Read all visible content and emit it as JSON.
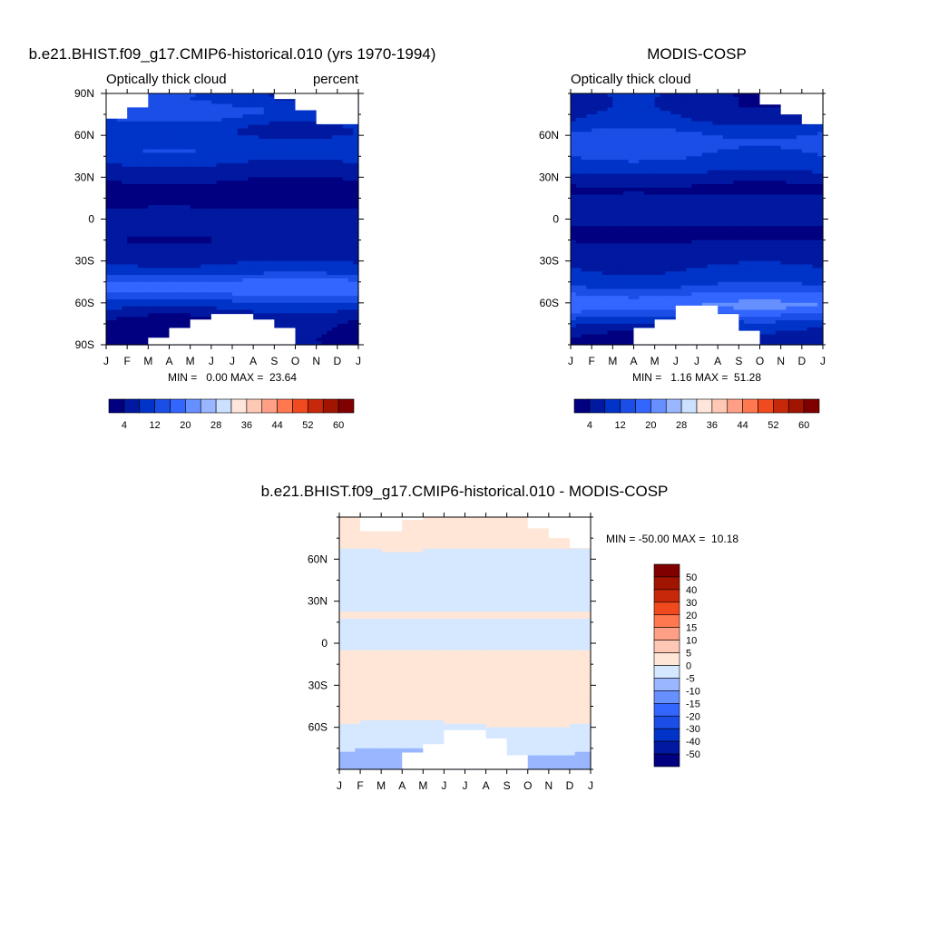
{
  "colors": {
    "abs_scale": [
      "#000080",
      "#0019a0",
      "#0033c8",
      "#1a4ee6",
      "#3366ff",
      "#6690ff",
      "#99b6ff",
      "#cce0ff",
      "#ffe6dc",
      "#ffc8b4",
      "#ffa086",
      "#ff7850",
      "#f04a1e",
      "#c8280a",
      "#a01400",
      "#800000"
    ],
    "diff_scale": [
      "#000080",
      "#0019a0",
      "#0033c8",
      "#1a4ee6",
      "#3366ff",
      "#6690ff",
      "#99b6ff",
      "#d6e8ff",
      "#ffe6d6",
      "#ffc8b4",
      "#ffa086",
      "#ff7850",
      "#f04a1e",
      "#c8280a",
      "#a01400",
      "#800000"
    ],
    "missing": "#ffffff"
  },
  "chart_data": [
    {
      "type": "heatmap",
      "title": "b.e21.BHIST.f09_g17.CMIP6-historical.010 (yrs 1970-1994)",
      "left_string": "Optically thick cloud",
      "right_string": "percent",
      "x_tick_labels": [
        "J",
        "F",
        "M",
        "A",
        "M",
        "J",
        "J",
        "A",
        "S",
        "O",
        "N",
        "D",
        "J"
      ],
      "y_tick_labels": [
        "90N",
        "60N",
        "30N",
        "0",
        "30S",
        "60S",
        "90S"
      ],
      "y_ticks_lat": [
        90,
        60,
        30,
        0,
        -30,
        -60,
        -90
      ],
      "x_range": [
        0,
        12
      ],
      "y_range": [
        -90,
        90
      ],
      "minmax_text": "MIN =   0.00 MAX =  23.64",
      "colorbar_levels": [
        4,
        8,
        12,
        16,
        20,
        24,
        28,
        32,
        36,
        40,
        44,
        48,
        52,
        56,
        60
      ],
      "colorbar_tick_labels": [
        "4",
        "12",
        "20",
        "28",
        "36",
        "44",
        "52",
        "60"
      ],
      "lat_profile": [
        [
          -85,
          2
        ],
        [
          -75,
          3
        ],
        [
          -68,
          6
        ],
        [
          -60,
          11
        ],
        [
          -55,
          15
        ],
        [
          -50,
          19
        ],
        [
          -45,
          17
        ],
        [
          -40,
          12
        ],
        [
          -35,
          9
        ],
        [
          -25,
          6
        ],
        [
          -15,
          4
        ],
        [
          -8,
          5
        ],
        [
          0,
          7
        ],
        [
          8,
          4
        ],
        [
          15,
          2
        ],
        [
          22,
          3
        ],
        [
          28,
          4
        ],
        [
          33,
          6
        ],
        [
          40,
          8
        ],
        [
          48,
          11
        ],
        [
          55,
          10
        ],
        [
          62,
          8
        ],
        [
          68,
          9
        ],
        [
          72,
          12
        ],
        [
          78,
          14
        ],
        [
          85,
          10
        ]
      ],
      "missing_north": [
        [
          0,
          72
        ],
        [
          1,
          80
        ],
        [
          2,
          90
        ],
        [
          3,
          90
        ],
        [
          4,
          90
        ],
        [
          5,
          90
        ],
        [
          6,
          90
        ],
        [
          7,
          90
        ],
        [
          8,
          86
        ],
        [
          9,
          78
        ],
        [
          10,
          68
        ],
        [
          11,
          68
        ],
        [
          12,
          68
        ]
      ],
      "missing_south": [
        [
          0,
          -90
        ],
        [
          1,
          -90
        ],
        [
          2,
          -85
        ],
        [
          3,
          -78
        ],
        [
          4,
          -72
        ],
        [
          5,
          -68
        ],
        [
          6,
          -68
        ],
        [
          7,
          -72
        ],
        [
          8,
          -78
        ],
        [
          9,
          -90
        ],
        [
          10,
          -90
        ],
        [
          11,
          -90
        ],
        [
          12,
          -90
        ]
      ]
    },
    {
      "type": "heatmap",
      "title": "MODIS-COSP",
      "left_string": "Optically thick cloud",
      "right_string": "",
      "x_tick_labels": [
        "J",
        "F",
        "M",
        "A",
        "M",
        "J",
        "J",
        "A",
        "S",
        "O",
        "N",
        "D",
        "J"
      ],
      "y_tick_labels": [
        "60N",
        "30N",
        "0",
        "30S",
        "60S"
      ],
      "y_ticks_lat": [
        60,
        30,
        0,
        -30,
        -60
      ],
      "x_range": [
        0,
        12
      ],
      "y_range": [
        -90,
        90
      ],
      "minmax_text": "MIN =   1.16 MAX =  51.28",
      "colorbar_levels": [
        4,
        8,
        12,
        16,
        20,
        24,
        28,
        32,
        36,
        40,
        44,
        48,
        52,
        56,
        60
      ],
      "colorbar_tick_labels": [
        "4",
        "12",
        "20",
        "28",
        "36",
        "44",
        "52",
        "60"
      ],
      "lat_profile": [
        [
          -85,
          4
        ],
        [
          -75,
          9
        ],
        [
          -68,
          15
        ],
        [
          -62,
          20
        ],
        [
          -55,
          17
        ],
        [
          -48,
          12
        ],
        [
          -40,
          9
        ],
        [
          -30,
          7
        ],
        [
          -20,
          5
        ],
        [
          -12,
          3
        ],
        [
          -5,
          4
        ],
        [
          0,
          5
        ],
        [
          8,
          8
        ],
        [
          15,
          5
        ],
        [
          20,
          3
        ],
        [
          28,
          5
        ],
        [
          35,
          9
        ],
        [
          45,
          12
        ],
        [
          55,
          14
        ],
        [
          62,
          12
        ],
        [
          70,
          8
        ],
        [
          80,
          6
        ]
      ],
      "missing_north": [
        [
          0,
          90
        ],
        [
          1,
          90
        ],
        [
          2,
          90
        ],
        [
          3,
          90
        ],
        [
          4,
          90
        ],
        [
          5,
          90
        ],
        [
          6,
          90
        ],
        [
          7,
          90
        ],
        [
          8,
          90
        ],
        [
          9,
          82
        ],
        [
          10,
          75
        ],
        [
          11,
          68
        ],
        [
          12,
          68
        ]
      ],
      "missing_south": [
        [
          0,
          -90
        ],
        [
          1,
          -90
        ],
        [
          2,
          -90
        ],
        [
          3,
          -78
        ],
        [
          4,
          -72
        ],
        [
          5,
          -62
        ],
        [
          6,
          -62
        ],
        [
          7,
          -68
        ],
        [
          8,
          -80
        ],
        [
          9,
          -90
        ],
        [
          10,
          -90
        ],
        [
          11,
          -90
        ],
        [
          12,
          -90
        ]
      ]
    },
    {
      "type": "heatmap",
      "title": "b.e21.BHIST.f09_g17.CMIP6-historical.010 - MODIS-COSP",
      "left_string": "",
      "right_string": "",
      "x_tick_labels": [
        "J",
        "F",
        "M",
        "A",
        "M",
        "J",
        "J",
        "A",
        "S",
        "O",
        "N",
        "D",
        "J"
      ],
      "y_tick_labels": [
        "60N",
        "30N",
        "0",
        "30S",
        "60S"
      ],
      "y_ticks_lat": [
        60,
        30,
        0,
        -30,
        -60
      ],
      "x_range": [
        0,
        12
      ],
      "y_range": [
        -90,
        90
      ],
      "minmax_text": "MIN = -50.00 MAX =  10.18",
      "colorbar_levels": [
        -50,
        -40,
        -30,
        -20,
        -15,
        -10,
        -5,
        0,
        5,
        10,
        15,
        20,
        30,
        40,
        50
      ],
      "colorbar_tick_labels": [
        "-50",
        "-40",
        "-30",
        "-20",
        "-15",
        "-10",
        "-5",
        "0",
        "5",
        "10",
        "15",
        "20",
        "30",
        "40",
        "50"
      ],
      "lat_profile": [
        [
          -85,
          -8
        ],
        [
          -75,
          -4
        ],
        [
          -68,
          -2
        ],
        [
          -60,
          -1
        ],
        [
          -50,
          3
        ],
        [
          -42,
          3
        ],
        [
          -35,
          1
        ],
        [
          -25,
          1
        ],
        [
          -15,
          2
        ],
        [
          -8,
          1
        ],
        [
          0,
          -1
        ],
        [
          8,
          -2
        ],
        [
          15,
          -1
        ],
        [
          20,
          1
        ],
        [
          25,
          -1
        ],
        [
          30,
          -2
        ],
        [
          40,
          -2
        ],
        [
          50,
          -3
        ],
        [
          58,
          -4
        ],
        [
          65,
          -2
        ],
        [
          72,
          4
        ],
        [
          80,
          2
        ]
      ],
      "missing_north": [
        [
          0,
          90
        ],
        [
          1,
          80
        ],
        [
          2,
          80
        ],
        [
          3,
          88
        ],
        [
          4,
          90
        ],
        [
          5,
          90
        ],
        [
          6,
          90
        ],
        [
          7,
          90
        ],
        [
          8,
          90
        ],
        [
          9,
          82
        ],
        [
          10,
          75
        ],
        [
          11,
          68
        ],
        [
          12,
          68
        ]
      ],
      "missing_south": [
        [
          0,
          -90
        ],
        [
          1,
          -90
        ],
        [
          2,
          -90
        ],
        [
          3,
          -78
        ],
        [
          4,
          -72
        ],
        [
          5,
          -62
        ],
        [
          6,
          -62
        ],
        [
          7,
          -68
        ],
        [
          8,
          -80
        ],
        [
          9,
          -90
        ],
        [
          10,
          -90
        ],
        [
          11,
          -90
        ],
        [
          12,
          -90
        ]
      ]
    }
  ]
}
